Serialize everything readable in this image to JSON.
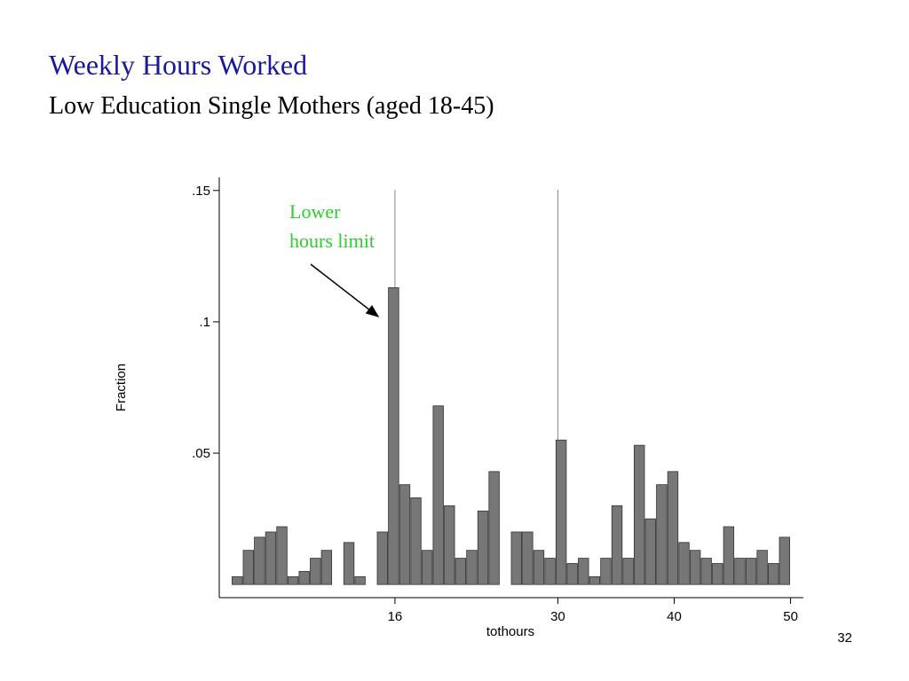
{
  "title": "Weekly Hours Worked",
  "subtitle": "Low Education Single Mothers (aged 18-45)",
  "page_number": "32",
  "chart_data": {
    "type": "histogram",
    "x_label": "tothours",
    "y_label": "Fraction",
    "annotation": [
      "Lower",
      "hours limit"
    ],
    "color": "#777777",
    "bins": [
      2,
      2.96,
      3.92,
      4.88,
      5.84,
      6.8,
      7.76,
      8.72,
      9.68,
      10.64,
      11.6,
      12.56,
      13.52,
      14.48,
      15.44,
      16.4,
      17.36,
      18.32,
      19.28,
      20.24,
      21.2,
      22.16,
      23.12,
      24.08,
      25.04,
      26,
      26.96,
      27.92,
      28.88,
      29.84,
      30.8,
      31.76,
      32.72,
      33.68,
      34.64,
      35.6,
      36.56,
      37.52,
      38.48,
      39.44,
      40.4,
      41.36,
      42.32,
      43.28,
      44.24,
      45.2,
      46.16,
      47.12,
      48.08,
      49.04,
      50
    ],
    "values": [
      0.003,
      0.013,
      0.018,
      0.02,
      0.022,
      0.003,
      0.005,
      0.01,
      0.013,
      0,
      0.016,
      0.003,
      0,
      0.02,
      0.113,
      0.038,
      0.033,
      0.013,
      0.068,
      0.03,
      0.01,
      0.013,
      0.028,
      0.043,
      0,
      0.02,
      0.02,
      0.013,
      0.01,
      0.055,
      0.008,
      0.01,
      0.003,
      0.01,
      0.03,
      0.01,
      0.053,
      0.025,
      0.038,
      0.043,
      0.016,
      0.013,
      0.01,
      0.008,
      0.022,
      0.01,
      0.01,
      0.013,
      0.008,
      0.018
    ],
    "xlim": [
      0.9,
      51.1
    ],
    "ylim": [
      -0.005,
      0.155
    ],
    "xticks": [
      16,
      30,
      40,
      50
    ],
    "yticks": [
      {
        "value": 0.05,
        "label": ".05"
      },
      {
        "value": 0.1,
        "label": ".1"
      },
      {
        "value": 0.15,
        "label": ".15"
      }
    ],
    "xlines": [
      16,
      30
    ]
  }
}
